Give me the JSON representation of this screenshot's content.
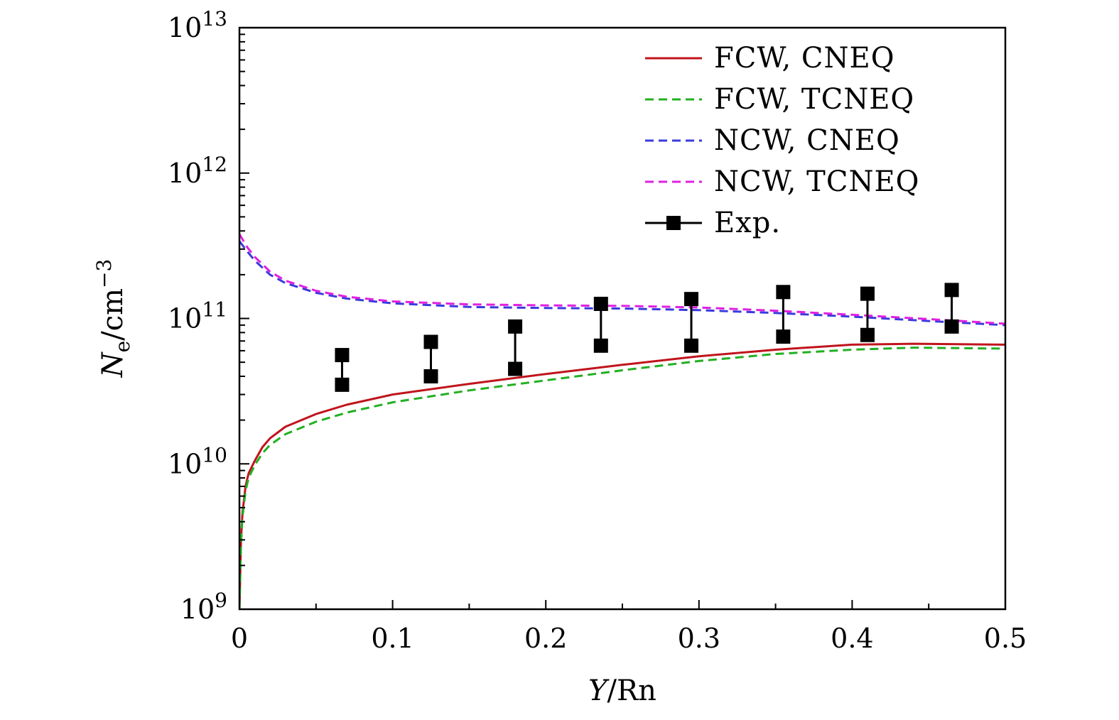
{
  "chart_data": {
    "type": "line",
    "title": "",
    "xlabel": {
      "var": "Y",
      "rest": "/Rn"
    },
    "ylabel": {
      "var": "N",
      "sub": "e",
      "rest": "/cm",
      "sup": "−3"
    },
    "x_range": [
      0,
      0.5
    ],
    "y_range_log10": [
      9,
      13
    ],
    "y_scale": "log",
    "x_ticks": [
      {
        "value": 0,
        "label": "0"
      },
      {
        "value": 0.1,
        "label": "0.1"
      },
      {
        "value": 0.2,
        "label": "0.2"
      },
      {
        "value": 0.3,
        "label": "0.3"
      },
      {
        "value": 0.4,
        "label": "0.4"
      },
      {
        "value": 0.5,
        "label": "0.5"
      }
    ],
    "y_ticks": [
      {
        "exp": 9,
        "base": "10",
        "sup": "9"
      },
      {
        "exp": 10,
        "base": "10",
        "sup": "10"
      },
      {
        "exp": 11,
        "base": "10",
        "sup": "11"
      },
      {
        "exp": 12,
        "base": "10",
        "sup": "12"
      },
      {
        "exp": 13,
        "base": "10",
        "sup": "13"
      }
    ],
    "legend_position": "top-right",
    "series": [
      {
        "name": "FCW, CNEQ",
        "color": "#c0141c",
        "dash": "solid",
        "x": [
          0,
          0.001,
          0.002,
          0.004,
          0.006,
          0.01,
          0.015,
          0.02,
          0.03,
          0.05,
          0.07,
          0.1,
          0.15,
          0.2,
          0.25,
          0.3,
          0.35,
          0.4,
          0.44,
          0.47,
          0.5
        ],
        "y": [
          1000000000.0,
          3000000000.0,
          4600000000.0,
          7000000000.0,
          8600000000.0,
          10500000000.0,
          13000000000.0,
          15000000000.0,
          18000000000.0,
          22000000000.0,
          25500000000.0,
          30000000000.0,
          35500000000.0,
          41500000000.0,
          48000000000.0,
          55000000000.0,
          61000000000.0,
          66000000000.0,
          67000000000.0,
          66500000000.0,
          66000000000.0
        ]
      },
      {
        "name": "FCW, TCNEQ",
        "color": "#22b022",
        "dash": "dashed",
        "x": [
          0,
          0.001,
          0.002,
          0.004,
          0.006,
          0.01,
          0.015,
          0.02,
          0.03,
          0.05,
          0.07,
          0.1,
          0.15,
          0.2,
          0.25,
          0.3,
          0.35,
          0.4,
          0.44,
          0.47,
          0.5
        ],
        "y": [
          1000000000.0,
          2800000000.0,
          4300000000.0,
          6500000000.0,
          8000000000.0,
          9800000000.0,
          11800000000.0,
          13500000000.0,
          16000000000.0,
          19500000000.0,
          22500000000.0,
          26500000000.0,
          32000000000.0,
          37500000000.0,
          44000000000.0,
          51000000000.0,
          57000000000.0,
          61000000000.0,
          63000000000.0,
          62500000000.0,
          62000000000.0
        ]
      },
      {
        "name": "NCW, CNEQ",
        "color": "#3a3ade",
        "dash": "dashed",
        "x": [
          0,
          0.005,
          0.01,
          0.02,
          0.03,
          0.05,
          0.07,
          0.1,
          0.15,
          0.2,
          0.25,
          0.3,
          0.35,
          0.4,
          0.45,
          0.5
        ],
        "y": [
          340000000000.0,
          290000000000.0,
          250000000000.0,
          200000000000.0,
          175000000000.0,
          150000000000.0,
          137000000000.0,
          127000000000.0,
          120000000000.0,
          118000000000.0,
          117000000000.0,
          114000000000.0,
          109000000000.0,
          103000000000.0,
          96000000000.0,
          90000000000.0
        ]
      },
      {
        "name": "NCW, TCNEQ",
        "color": "#e020e0",
        "dash": "dashed",
        "x": [
          0,
          0.005,
          0.01,
          0.02,
          0.03,
          0.05,
          0.07,
          0.1,
          0.15,
          0.2,
          0.25,
          0.3,
          0.35,
          0.4,
          0.45,
          0.5
        ],
        "y": [
          380000000000.0,
          310000000000.0,
          265000000000.0,
          210000000000.0,
          182000000000.0,
          155000000000.0,
          141000000000.0,
          131000000000.0,
          125000000000.0,
          123000000000.0,
          122000000000.0,
          119000000000.0,
          113000000000.0,
          106000000000.0,
          99000000000.0,
          92000000000.0
        ]
      }
    ],
    "experiment": {
      "name": "Exp.",
      "color": "#000000",
      "points": [
        {
          "x": 0.067,
          "low": 35000000000.0,
          "high": 56000000000.0
        },
        {
          "x": 0.125,
          "low": 40000000000.0,
          "high": 69000000000.0
        },
        {
          "x": 0.18,
          "low": 45000000000.0,
          "high": 88000000000.0
        },
        {
          "x": 0.236,
          "low": 65000000000.0,
          "high": 126000000000.0
        },
        {
          "x": 0.295,
          "low": 65000000000.0,
          "high": 136000000000.0
        },
        {
          "x": 0.355,
          "low": 75000000000.0,
          "high": 152000000000.0
        },
        {
          "x": 0.41,
          "low": 77000000000.0,
          "high": 148000000000.0
        },
        {
          "x": 0.465,
          "low": 88000000000.0,
          "high": 157000000000.0
        }
      ]
    }
  }
}
